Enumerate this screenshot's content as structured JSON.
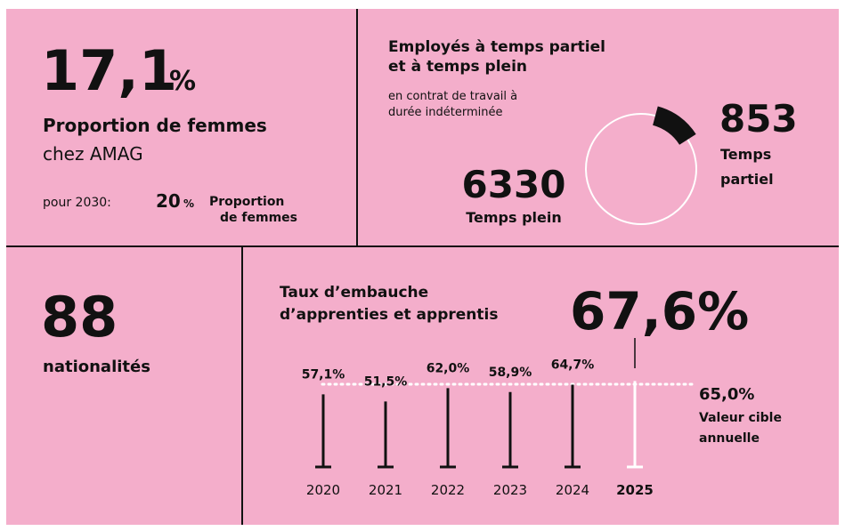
{
  "women": {
    "value": "17,1",
    "unit": "%",
    "label": "Proportion de femmes",
    "sublabel": "chez AMAG",
    "target_prefix": "pour 2030:",
    "target_value": "20",
    "target_unit": "%",
    "target_label": [
      "Proportion",
      "de femmes"
    ]
  },
  "employees": {
    "title": [
      "Employés à temps partiel",
      "et à temps plein"
    ],
    "subtitle": [
      "en contrat de travail à",
      "durée indéterminée"
    ],
    "part_time": 853,
    "part_time_label": [
      "Temps",
      "partiel"
    ],
    "full_time": 6330,
    "full_time_label": "Temps plein"
  },
  "nationalities": {
    "value": 88,
    "label": "nationalités"
  },
  "apprentices": {
    "title": [
      "Taux d’embauche",
      "d’apprenties et apprentis"
    ],
    "years": [
      "2020",
      "2021",
      "2022",
      "2023",
      "2024",
      "2025"
    ],
    "values": [
      57.1,
      51.5,
      62.0,
      58.9,
      64.7,
      67.6
    ],
    "value_labels": [
      "57,1%",
      "51,5%",
      "62,0%",
      "58,9%",
      "64,7%",
      "67,6%"
    ],
    "target": 65.0,
    "target_label": "65,0%",
    "target_text": [
      "Valeur cible",
      "annuelle"
    ]
  }
}
